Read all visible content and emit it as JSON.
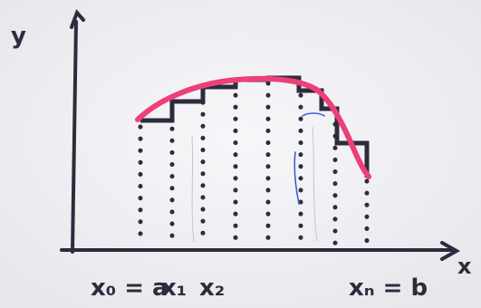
{
  "colors": {
    "background": "#ffffff",
    "paper": "#f5f4f7",
    "ink": "#2d2c3e",
    "curve": "#ee3f78",
    "blue_ink": "#3e5fd0"
  },
  "labels": {
    "y_axis": "y",
    "x_axis": "x",
    "x0": "x₀ = a",
    "x1": "x₁",
    "x2": "x₂",
    "xn": "xₙ = b"
  }
}
